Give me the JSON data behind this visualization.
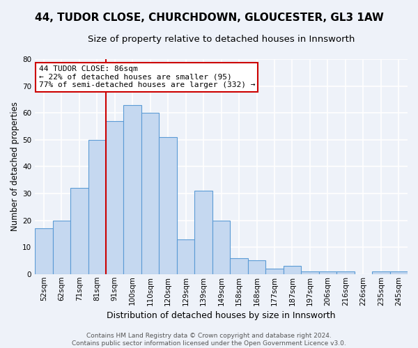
{
  "title": "44, TUDOR CLOSE, CHURCHDOWN, GLOUCESTER, GL3 1AW",
  "subtitle": "Size of property relative to detached houses in Innsworth",
  "xlabel": "Distribution of detached houses by size in Innsworth",
  "ylabel": "Number of detached properties",
  "bin_labels": [
    "52sqm",
    "62sqm",
    "71sqm",
    "81sqm",
    "91sqm",
    "100sqm",
    "110sqm",
    "120sqm",
    "129sqm",
    "139sqm",
    "149sqm",
    "158sqm",
    "168sqm",
    "177sqm",
    "187sqm",
    "197sqm",
    "206sqm",
    "216sqm",
    "226sqm",
    "235sqm",
    "245sqm"
  ],
  "bar_heights": [
    17,
    20,
    32,
    50,
    57,
    63,
    60,
    51,
    13,
    31,
    20,
    6,
    5,
    2,
    3,
    1,
    1,
    1,
    0,
    1,
    1
  ],
  "bar_color": "#c5d8f0",
  "bar_edge_color": "#5b9bd5",
  "ylim": [
    0,
    80
  ],
  "yticks": [
    0,
    10,
    20,
    30,
    40,
    50,
    60,
    70,
    80
  ],
  "red_line_x": 4,
  "annotation_title": "44 TUDOR CLOSE: 86sqm",
  "annotation_line1": "← 22% of detached houses are smaller (95)",
  "annotation_line2": "77% of semi-detached houses are larger (332) →",
  "annotation_box_color": "#ffffff",
  "annotation_box_edge": "#cc0000",
  "footer1": "Contains HM Land Registry data © Crown copyright and database right 2024.",
  "footer2": "Contains public sector information licensed under the Open Government Licence v3.0.",
  "background_color": "#eef2f9",
  "grid_color": "#ffffff",
  "title_fontsize": 11,
  "subtitle_fontsize": 9.5,
  "xlabel_fontsize": 9,
  "ylabel_fontsize": 8.5,
  "tick_fontsize": 7.5,
  "footer_fontsize": 6.5,
  "annotation_fontsize": 8
}
